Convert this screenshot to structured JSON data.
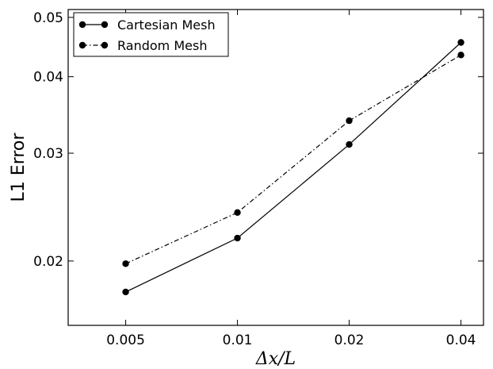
{
  "chart_data": {
    "type": "line",
    "x_scale": "log",
    "y_scale": "log",
    "x": [
      0.005,
      0.01,
      0.02,
      0.04
    ],
    "xlim": [
      0.0035,
      0.046
    ],
    "ylim": [
      0.0157,
      0.0515
    ],
    "x_ticks": [
      0.005,
      0.01,
      0.02,
      0.04
    ],
    "x_tick_labels": [
      "0.005",
      "0.01",
      "0.02",
      "0.04"
    ],
    "y_ticks": [
      0.02,
      0.03,
      0.04,
      0.05
    ],
    "y_tick_labels": [
      "0.02",
      "0.03",
      "0.04",
      "0.05"
    ],
    "xlabel": "Δx/L",
    "ylabel": "L1 Error",
    "grid": false,
    "legend_position": "upper-left",
    "series": [
      {
        "name": "Cartesian Mesh",
        "values": [
          0.0178,
          0.0218,
          0.031,
          0.0455
        ],
        "line_style": "solid",
        "marker": "circle",
        "color": "#000000"
      },
      {
        "name": "Random Mesh",
        "values": [
          0.0198,
          0.024,
          0.0339,
          0.0434
        ],
        "line_style": "dashdot",
        "marker": "circle",
        "color": "#000000"
      }
    ]
  }
}
